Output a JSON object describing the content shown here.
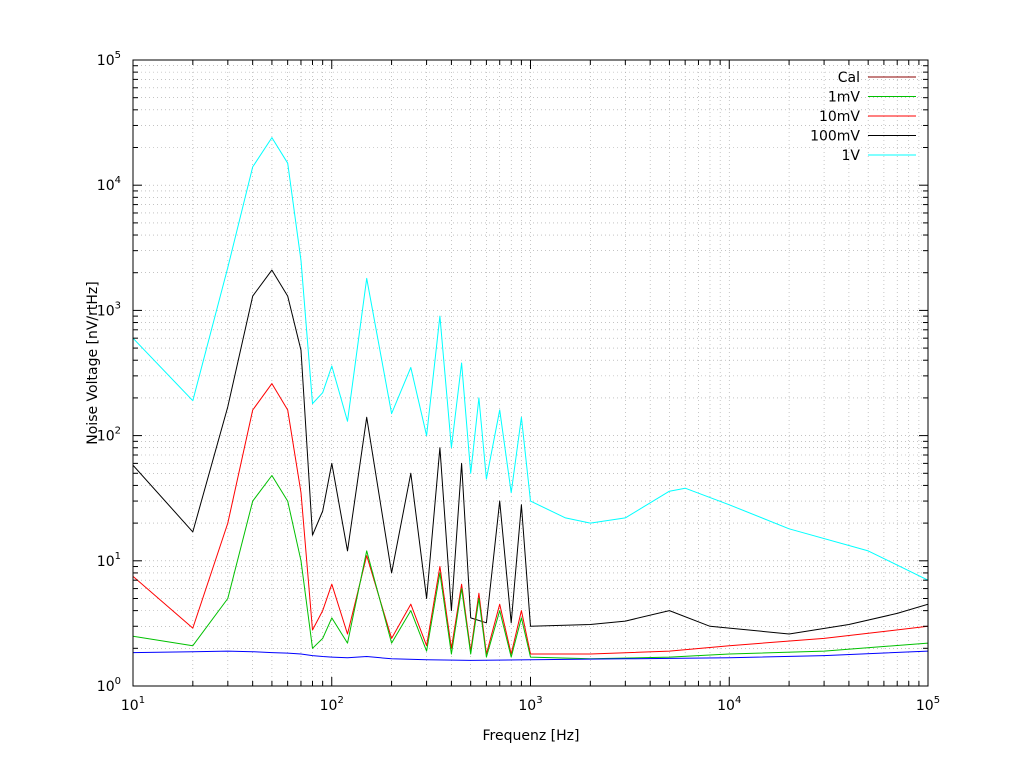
{
  "chart_data": {
    "type": "line",
    "title": "",
    "xlabel": "Frequenz [Hz]",
    "ylabel": "Noise Voltage [nV/rtHz]",
    "xscale": "log",
    "yscale": "log",
    "xlim": [
      10,
      100000
    ],
    "ylim": [
      1,
      100000
    ],
    "grid": true,
    "legend_position": "top-right",
    "x_ticks": [
      {
        "base": "10",
        "exp": "1"
      },
      {
        "base": "10",
        "exp": "2"
      },
      {
        "base": "10",
        "exp": "3"
      },
      {
        "base": "10",
        "exp": "4"
      },
      {
        "base": "10",
        "exp": "5"
      }
    ],
    "y_ticks": [
      {
        "base": "10",
        "exp": "0"
      },
      {
        "base": "10",
        "exp": "1"
      },
      {
        "base": "10",
        "exp": "2"
      },
      {
        "base": "10",
        "exp": "3"
      },
      {
        "base": "10",
        "exp": "4"
      },
      {
        "base": "10",
        "exp": "5"
      }
    ],
    "series": [
      {
        "name": "Cal",
        "color": "#0000ff",
        "legend_color": "#8b0000",
        "points": [
          [
            10,
            1.85
          ],
          [
            20,
            1.88
          ],
          [
            30,
            1.9
          ],
          [
            40,
            1.88
          ],
          [
            50,
            1.85
          ],
          [
            60,
            1.83
          ],
          [
            70,
            1.8
          ],
          [
            80,
            1.75
          ],
          [
            90,
            1.72
          ],
          [
            100,
            1.7
          ],
          [
            120,
            1.68
          ],
          [
            150,
            1.72
          ],
          [
            200,
            1.65
          ],
          [
            300,
            1.62
          ],
          [
            500,
            1.6
          ],
          [
            1000,
            1.62
          ],
          [
            3000,
            1.65
          ],
          [
            10000,
            1.68
          ],
          [
            30000,
            1.75
          ],
          [
            100000,
            1.9
          ]
        ]
      },
      {
        "name": "1mV",
        "color": "#00c000",
        "legend_color": "#00c000",
        "points": [
          [
            10,
            2.5
          ],
          [
            20,
            2.1
          ],
          [
            30,
            5
          ],
          [
            40,
            30
          ],
          [
            50,
            48
          ],
          [
            60,
            30
          ],
          [
            70,
            10
          ],
          [
            80,
            2
          ],
          [
            90,
            2.4
          ],
          [
            100,
            3.5
          ],
          [
            120,
            2.2
          ],
          [
            150,
            12
          ],
          [
            200,
            2.2
          ],
          [
            250,
            4
          ],
          [
            300,
            1.9
          ],
          [
            350,
            8
          ],
          [
            400,
            1.8
          ],
          [
            450,
            6
          ],
          [
            500,
            1.8
          ],
          [
            550,
            5
          ],
          [
            600,
            1.7
          ],
          [
            700,
            4
          ],
          [
            800,
            1.7
          ],
          [
            900,
            3.5
          ],
          [
            1000,
            1.7
          ],
          [
            2000,
            1.65
          ],
          [
            5000,
            1.7
          ],
          [
            10000,
            1.8
          ],
          [
            30000,
            1.9
          ],
          [
            100000,
            2.2
          ]
        ]
      },
      {
        "name": "10mV",
        "color": "#ff0000",
        "legend_color": "#ff0000",
        "points": [
          [
            10,
            7.5
          ],
          [
            20,
            2.9
          ],
          [
            30,
            20
          ],
          [
            40,
            160
          ],
          [
            50,
            260
          ],
          [
            60,
            160
          ],
          [
            70,
            35
          ],
          [
            80,
            2.8
          ],
          [
            90,
            4
          ],
          [
            100,
            6.5
          ],
          [
            120,
            2.6
          ],
          [
            150,
            11
          ],
          [
            200,
            2.4
          ],
          [
            250,
            4.5
          ],
          [
            300,
            2.1
          ],
          [
            350,
            9
          ],
          [
            400,
            2
          ],
          [
            450,
            6.5
          ],
          [
            500,
            1.9
          ],
          [
            550,
            5.5
          ],
          [
            600,
            1.8
          ],
          [
            700,
            4.5
          ],
          [
            800,
            1.8
          ],
          [
            900,
            4
          ],
          [
            1000,
            1.8
          ],
          [
            2000,
            1.8
          ],
          [
            5000,
            1.9
          ],
          [
            10000,
            2.1
          ],
          [
            30000,
            2.4
          ],
          [
            100000,
            3
          ]
        ]
      },
      {
        "name": "100mV",
        "color": "#000000",
        "legend_color": "#000000",
        "points": [
          [
            10,
            58
          ],
          [
            20,
            17
          ],
          [
            30,
            170
          ],
          [
            40,
            1300
          ],
          [
            50,
            2100
          ],
          [
            60,
            1300
          ],
          [
            70,
            480
          ],
          [
            80,
            16
          ],
          [
            90,
            25
          ],
          [
            100,
            60
          ],
          [
            120,
            12
          ],
          [
            150,
            140
          ],
          [
            200,
            8
          ],
          [
            250,
            50
          ],
          [
            300,
            5
          ],
          [
            350,
            80
          ],
          [
            400,
            4
          ],
          [
            450,
            60
          ],
          [
            500,
            3.5
          ],
          [
            600,
            3.2
          ],
          [
            700,
            30
          ],
          [
            800,
            3.2
          ],
          [
            900,
            28
          ],
          [
            1000,
            3
          ],
          [
            2000,
            3.1
          ],
          [
            3000,
            3.3
          ],
          [
            5000,
            4
          ],
          [
            8000,
            3
          ],
          [
            10000,
            2.9
          ],
          [
            20000,
            2.6
          ],
          [
            40000,
            3.1
          ],
          [
            70000,
            3.8
          ],
          [
            100000,
            4.5
          ]
        ]
      },
      {
        "name": "1V",
        "color": "#00ffff",
        "legend_color": "#00ffff",
        "points": [
          [
            10,
            600
          ],
          [
            20,
            190
          ],
          [
            30,
            2200
          ],
          [
            40,
            14000
          ],
          [
            50,
            24000
          ],
          [
            60,
            15000
          ],
          [
            70,
            2500
          ],
          [
            80,
            180
          ],
          [
            90,
            220
          ],
          [
            100,
            360
          ],
          [
            120,
            130
          ],
          [
            150,
            1800
          ],
          [
            200,
            150
          ],
          [
            250,
            350
          ],
          [
            300,
            100
          ],
          [
            350,
            900
          ],
          [
            400,
            80
          ],
          [
            450,
            380
          ],
          [
            500,
            50
          ],
          [
            550,
            200
          ],
          [
            600,
            45
          ],
          [
            700,
            160
          ],
          [
            800,
            35
          ],
          [
            900,
            140
          ],
          [
            1000,
            30
          ],
          [
            1500,
            22
          ],
          [
            2000,
            20
          ],
          [
            3000,
            22
          ],
          [
            5000,
            36
          ],
          [
            6000,
            38
          ],
          [
            10000,
            28
          ],
          [
            20000,
            18
          ],
          [
            50000,
            12
          ],
          [
            100000,
            7
          ]
        ]
      }
    ]
  }
}
